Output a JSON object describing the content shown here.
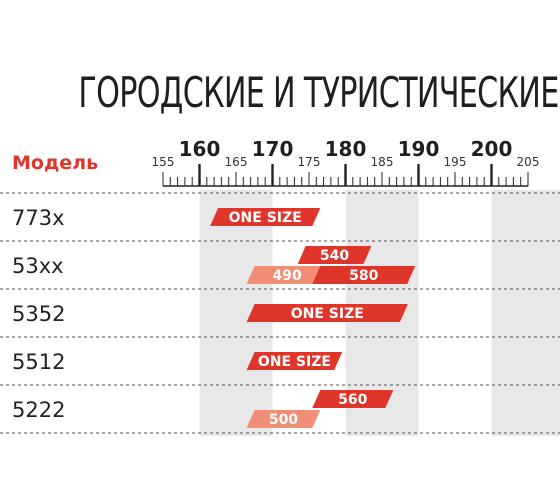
{
  "title": "ГОРОДСКИЕ И ТУРИСТИЧЕСКИЕ",
  "colors": {
    "primary": "#e0352b",
    "secondary": "#f08f76",
    "band": "#e8e8e8",
    "text": "#222222"
  },
  "chart_data": {
    "type": "range_bar",
    "header": "Модель",
    "x": {
      "min": 155,
      "max": 205,
      "major_ticks": [
        160,
        170,
        180,
        190,
        200
      ],
      "minor_labels": [
        155,
        165,
        175,
        185,
        195,
        205
      ],
      "shaded_bands": [
        [
          160,
          170
        ],
        [
          180,
          190
        ],
        [
          200,
          210
        ]
      ]
    },
    "rows": [
      {
        "model": "773x",
        "bars": [
          {
            "label": "ONE SIZE",
            "from": 162,
            "to": 176,
            "color": "primary",
            "lane": "mid"
          }
        ]
      },
      {
        "model": "53xx",
        "bars": [
          {
            "label": "540",
            "from": 174,
            "to": 183,
            "color": "primary",
            "lane": "top"
          },
          {
            "label": "490",
            "from": 167,
            "to": 177,
            "color": "secondary",
            "lane": "bottom"
          },
          {
            "label": "580",
            "from": 176,
            "to": 189,
            "color": "primary",
            "lane": "bottom"
          }
        ]
      },
      {
        "model": "5352",
        "bars": [
          {
            "label": "ONE SIZE",
            "from": 167,
            "to": 188,
            "color": "primary",
            "lane": "mid"
          }
        ]
      },
      {
        "model": "5512",
        "bars": [
          {
            "label": "ONE SIZE",
            "from": 167,
            "to": 179,
            "color": "primary",
            "lane": "mid"
          }
        ]
      },
      {
        "model": "5222",
        "bars": [
          {
            "label": "560",
            "from": 176,
            "to": 186,
            "color": "primary",
            "lane": "top"
          },
          {
            "label": "500",
            "from": 167,
            "to": 176,
            "color": "secondary",
            "lane": "bottom"
          }
        ]
      }
    ]
  }
}
